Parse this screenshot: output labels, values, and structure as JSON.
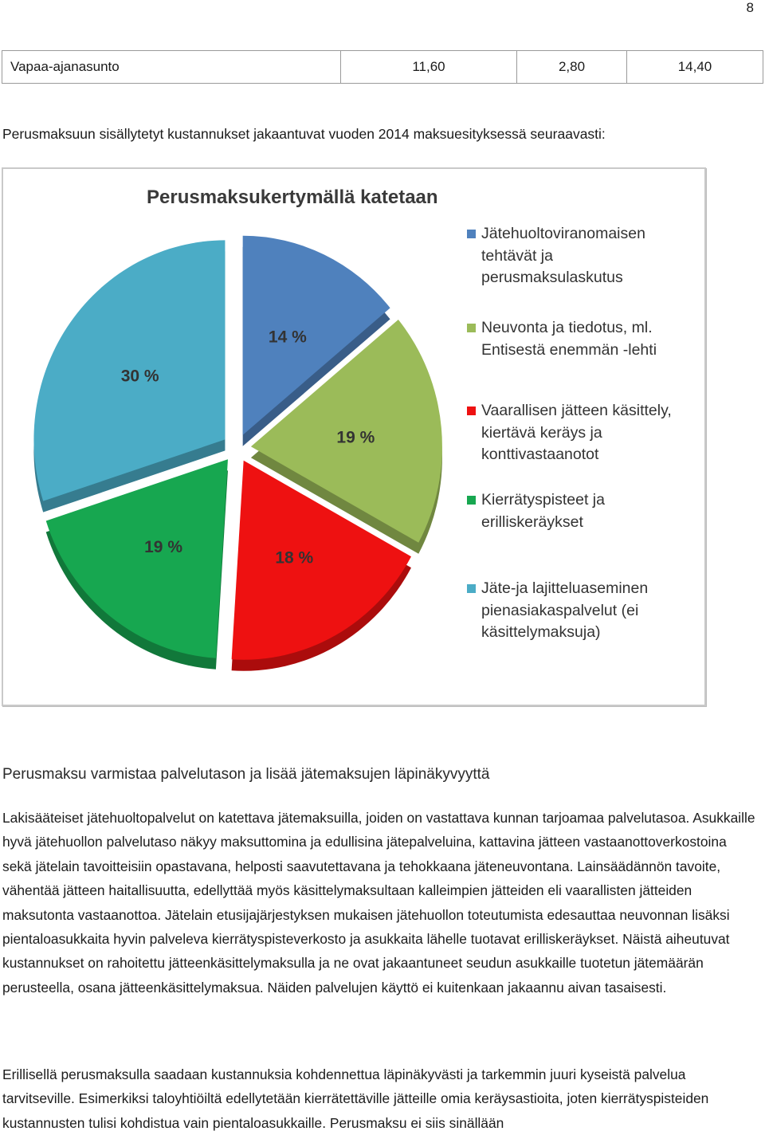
{
  "page": {
    "number": "8"
  },
  "table": {
    "row": {
      "label": "Vapaa-ajanasunto",
      "v1": "11,60",
      "v2": "2,80",
      "v3": "14,40"
    }
  },
  "intro": "Perusmaksuun sisällytetyt kustannukset jakaantuvat vuoden 2014 maksuesityksessä seuraavasti:",
  "chart_data": {
    "type": "pie",
    "title": "Perusmaksukertymällä katetaan",
    "legend_position": "right",
    "slices": [
      {
        "label": "Jätehuoltoviranomaisen tehtävät ja perusmaksulaskutus",
        "value": 14,
        "display": "14 %",
        "color": "#4f81bd"
      },
      {
        "label": "Neuvonta ja tiedotus, ml. Entisestä enemmän -lehti",
        "value": 19,
        "display": "19 %",
        "color": "#9bbb59"
      },
      {
        "label": "Vaarallisen jätteen käsittely, kiertävä keräys ja konttivastaanotot",
        "value": 18,
        "display": "18 %",
        "color": "#ee1111"
      },
      {
        "label": "Kierrätyspisteet ja erilliskeräykset",
        "value": 19,
        "display": "19 %",
        "color": "#17a750"
      },
      {
        "label": "Jäte-ja lajitteluaseminen pienasiakaspalvelut (ei käsittelymaksuja)",
        "value": 30,
        "display": "30 %",
        "color": "#4bacc6"
      }
    ]
  },
  "section": {
    "heading": "Perusmaksu varmistaa palvelutason ja lisää jätemaksujen läpinäkyvyyttä",
    "paragraph1": "Lakisääteiset jätehuoltopalvelut on katettava jätemaksuilla, joiden on vastattava kunnan tarjoamaa palvelutasoa. Asukkaille hyvä jätehuollon palvelutaso näkyy maksuttomina ja edullisina jätepalveluina, kattavina jätteen vastaanottoverkostoina sekä jätelain tavoitteisiin opastavana, helposti saavutettavana ja tehokkaana jäteneuvontana. Lainsäädännön tavoite, vähentää jätteen haitallisuutta, edellyttää myös käsittelymaksultaan kalleimpien jätteiden eli vaarallisten jätteiden maksutonta vastaanottoa. Jätelain etusijajärjestyksen mukaisen jätehuollon toteutumista edesauttaa neuvonnan lisäksi pientaloasukkaita hyvin palveleva kierrätyspisteverkosto ja asukkaita lähelle tuotavat erilliskeräykset. Näistä aiheutuvat kustannukset on rahoitettu jätteenkäsittelymaksulla ja ne ovat jakaantuneet seudun asukkaille tuotetun jätemäärän perusteella, osana jätteenkäsittelymaksua. Näiden palvelujen käyttö ei kuitenkaan jakaannu aivan tasaisesti.",
    "paragraph2": "Erillisellä perusmaksulla saadaan kustannuksia kohdennettua läpinäkyvästi ja tarkemmin juuri kyseistä palvelua tarvitseville. Esimerkiksi taloyhtiöiltä edellytetään kierrätettäville jätteille omia keräysastioita, joten kierrätyspisteiden kustannusten tulisi kohdistua vain pientaloasukkaille. Perusmaksu ei siis sinällään"
  }
}
